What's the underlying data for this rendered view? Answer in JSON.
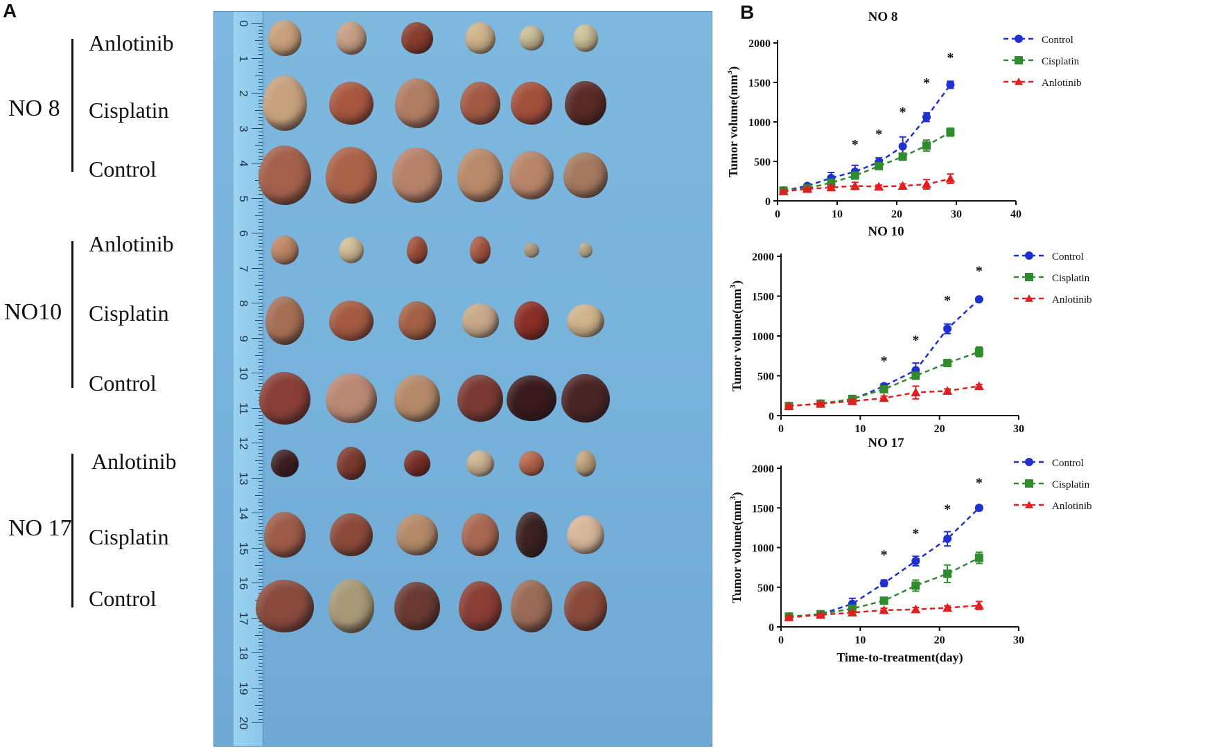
{
  "panel_a": {
    "letter": "A",
    "groups": [
      {
        "name": "NO 8",
        "rows": [
          "Anlotinib",
          "Cisplatin",
          "Control"
        ]
      },
      {
        "name": "NO10",
        "rows": [
          "Anlotinib",
          "Cisplatin",
          "Control"
        ]
      },
      {
        "name": "NO 17",
        "rows": [
          "Anlotinib",
          "Cisplatin",
          "Control"
        ]
      }
    ],
    "ruler_numbers": [
      "0",
      "1",
      "2",
      "3",
      "4",
      "5",
      "6",
      "7",
      "8",
      "9",
      "10",
      "11",
      "12",
      "13",
      "14",
      "15",
      "16",
      "17",
      "18",
      "19",
      "20"
    ],
    "colors": {
      "background": "#7ab4dc",
      "ruler": "#92cbed"
    }
  },
  "panel_b": {
    "letter": "B",
    "xlabel": "Time-to-treatment(day)"
  },
  "chart_data": [
    {
      "type": "line",
      "title": "NO 8",
      "ylabel": "Tumor volume(mm³)",
      "ylabel_base": "Tumor volume(mm",
      "ylabel_sup": "3",
      "ylabel_end": ")",
      "xlabel": "",
      "xlim": [
        0,
        40
      ],
      "ylim": [
        0,
        2000
      ],
      "xticks": [
        0,
        10,
        20,
        30,
        40
      ],
      "yticks": [
        0,
        500,
        1000,
        1500,
        2000
      ],
      "x": [
        1,
        5,
        9,
        13,
        17,
        21,
        25,
        29
      ],
      "series": [
        {
          "name": "Control",
          "color": "#1f2fd0",
          "marker": "circle",
          "values": [
            130,
            190,
            290,
            370,
            490,
            690,
            1060,
            1470
          ],
          "errors": [
            10,
            15,
            70,
            80,
            55,
            120,
            55,
            45
          ]
        },
        {
          "name": "Cisplatin",
          "color": "#2e8b2e",
          "marker": "square",
          "values": [
            130,
            160,
            230,
            320,
            440,
            560,
            700,
            870
          ],
          "errors": [
            10,
            15,
            30,
            40,
            40,
            40,
            70,
            50
          ]
        },
        {
          "name": "Anlotinib",
          "color": "#e02020",
          "marker": "triangle",
          "values": [
            120,
            150,
            170,
            190,
            180,
            190,
            210,
            280
          ],
          "errors": [
            10,
            20,
            30,
            45,
            20,
            25,
            60,
            60
          ]
        }
      ],
      "star_label": "*",
      "stars": [
        {
          "x": 13,
          "y": 730
        },
        {
          "x": 17,
          "y": 860
        },
        {
          "x": 21,
          "y": 1140
        },
        {
          "x": 25,
          "y": 1510
        },
        {
          "x": 29,
          "y": 1830
        }
      ]
    },
    {
      "type": "line",
      "title": "NO 10",
      "ylabel": "Tumor volume(mm³)",
      "ylabel_base": "Tumor volume(mm",
      "ylabel_sup": "3",
      "ylabel_end": ")",
      "xlabel": "",
      "xlim": [
        0,
        30
      ],
      "ylim": [
        0,
        2000
      ],
      "xticks": [
        0,
        10,
        20,
        30
      ],
      "yticks": [
        0,
        500,
        1000,
        1500,
        2000
      ],
      "x": [
        1,
        5,
        9,
        13,
        17,
        21,
        25
      ],
      "series": [
        {
          "name": "Control",
          "color": "#1f2fd0",
          "marker": "circle",
          "values": [
            120,
            150,
            200,
            370,
            570,
            1090,
            1460
          ],
          "errors": [
            10,
            15,
            20,
            30,
            90,
            60,
            20
          ]
        },
        {
          "name": "Cisplatin",
          "color": "#2e8b2e",
          "marker": "square",
          "values": [
            120,
            150,
            210,
            330,
            500,
            660,
            800
          ],
          "errors": [
            10,
            15,
            20,
            30,
            40,
            40,
            60
          ]
        },
        {
          "name": "Anlotinib",
          "color": "#e02020",
          "marker": "triangle",
          "values": [
            120,
            150,
            180,
            220,
            290,
            310,
            370
          ],
          "errors": [
            10,
            15,
            20,
            25,
            80,
            25,
            20
          ]
        }
      ],
      "star_label": "*",
      "stars": [
        {
          "x": 13,
          "y": 700
        },
        {
          "x": 17,
          "y": 960
        },
        {
          "x": 21,
          "y": 1460
        },
        {
          "x": 25,
          "y": 1830
        }
      ]
    },
    {
      "type": "line",
      "title": "NO 17",
      "ylabel": "Tumor volume(mm³)",
      "ylabel_base": "Tumor volume(mm",
      "ylabel_sup": "3",
      "ylabel_end": ")",
      "xlabel": "Time-to-treatment(day)",
      "xlim": [
        0,
        30
      ],
      "ylim": [
        0,
        2000
      ],
      "xticks": [
        0,
        10,
        20,
        30
      ],
      "yticks": [
        0,
        500,
        1000,
        1500,
        2000
      ],
      "x": [
        1,
        5,
        9,
        13,
        17,
        21,
        25
      ],
      "series": [
        {
          "name": "Control",
          "color": "#1f2fd0",
          "marker": "circle",
          "values": [
            130,
            160,
            290,
            550,
            830,
            1110,
            1500
          ],
          "errors": [
            10,
            15,
            70,
            40,
            60,
            90,
            30
          ]
        },
        {
          "name": "Cisplatin",
          "color": "#2e8b2e",
          "marker": "square",
          "values": [
            130,
            160,
            230,
            330,
            520,
            670,
            870
          ],
          "errors": [
            10,
            15,
            30,
            40,
            70,
            110,
            70
          ]
        },
        {
          "name": "Anlotinib",
          "color": "#e02020",
          "marker": "triangle",
          "values": [
            120,
            150,
            180,
            210,
            220,
            240,
            270
          ],
          "errors": [
            10,
            15,
            20,
            25,
            25,
            25,
            50
          ]
        }
      ],
      "star_label": "*",
      "stars": [
        {
          "x": 13,
          "y": 920
        },
        {
          "x": 17,
          "y": 1190
        },
        {
          "x": 21,
          "y": 1500
        },
        {
          "x": 25,
          "y": 1830
        }
      ]
    }
  ]
}
